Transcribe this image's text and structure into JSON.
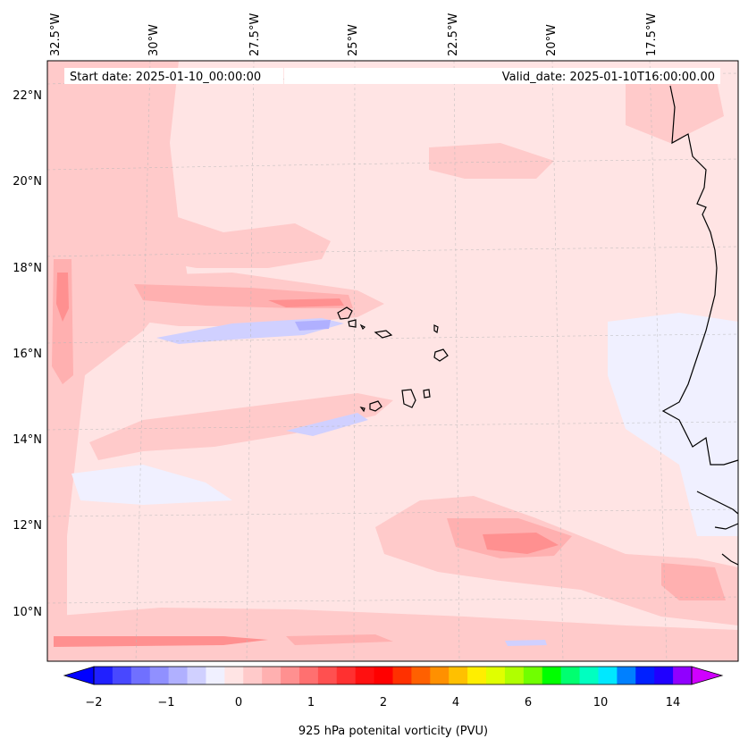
{
  "header": {
    "start_date": "Start date: 2025-01-10_00:00:00",
    "valid_date": "Valid_date: 2025-01-10T16:00:00.00"
  },
  "longitude_labels": [
    "32.5°W",
    "30°W",
    "27.5°W",
    "25°W",
    "22.5°W",
    "20°W",
    "17.5°W"
  ],
  "latitude_labels": [
    "22°N",
    "20°N",
    "18°N",
    "16°N",
    "14°N",
    "12°N",
    "10°N"
  ],
  "colorbar": {
    "title": "925 hPa potenital vorticity (PVU)",
    "tick_labels": [
      "−2",
      "−1",
      "0",
      "1",
      "2",
      "4",
      "6",
      "10",
      "14"
    ],
    "colors": [
      "#0000ff",
      "#2020ff",
      "#4848ff",
      "#7070ff",
      "#9090ff",
      "#b0b0ff",
      "#d0d0ff",
      "#f0f0ff",
      "#ffe4e4",
      "#ffcaca",
      "#ffb0b0",
      "#ff9090",
      "#ff7070",
      "#ff5050",
      "#ff3030",
      "#ff1010",
      "#ff0000",
      "#ff3000",
      "#ff6000",
      "#ff9000",
      "#ffc000",
      "#ffee00",
      "#e0ff00",
      "#b0ff00",
      "#70ff00",
      "#00ff00",
      "#00ff70",
      "#00ffc0",
      "#00e8ff",
      "#0080ff",
      "#0020ff",
      "#2000ff",
      "#9000ff",
      "#d000ff"
    ],
    "extend": "both"
  },
  "map": {
    "extent": {
      "lon": [
        -33.0,
        -14.5
      ],
      "lat": [
        8.8,
        22.8
      ]
    },
    "projection": "conic",
    "gridlines": true
  },
  "icon_names": [
    "coastline-icon",
    "island-icon"
  ]
}
